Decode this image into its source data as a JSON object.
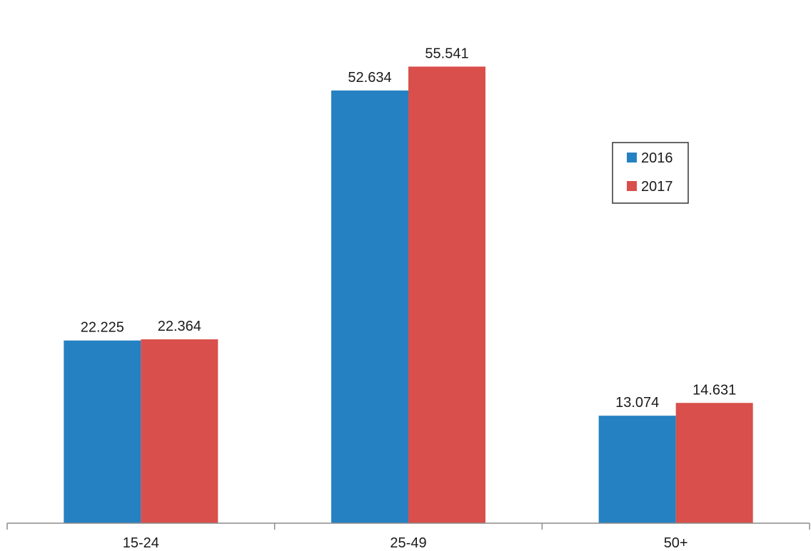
{
  "chart_data": {
    "type": "bar",
    "categories": [
      "15-24",
      "25-49",
      "50+"
    ],
    "series": [
      {
        "name": "2016",
        "values": [
          22.225,
          52.634,
          13.074
        ],
        "labels": [
          "22.225",
          "52.634",
          "13.074"
        ],
        "color": "#2581C1"
      },
      {
        "name": "2017",
        "values": [
          22.364,
          55.541,
          14.631
        ],
        "labels": [
          "22.364",
          "55.541",
          "14.631"
        ],
        "color": "#D94F4B"
      }
    ],
    "title": "",
    "xlabel": "",
    "ylabel": "",
    "ylim": [
      0,
      60
    ],
    "grid": false,
    "legend_position": "right"
  }
}
